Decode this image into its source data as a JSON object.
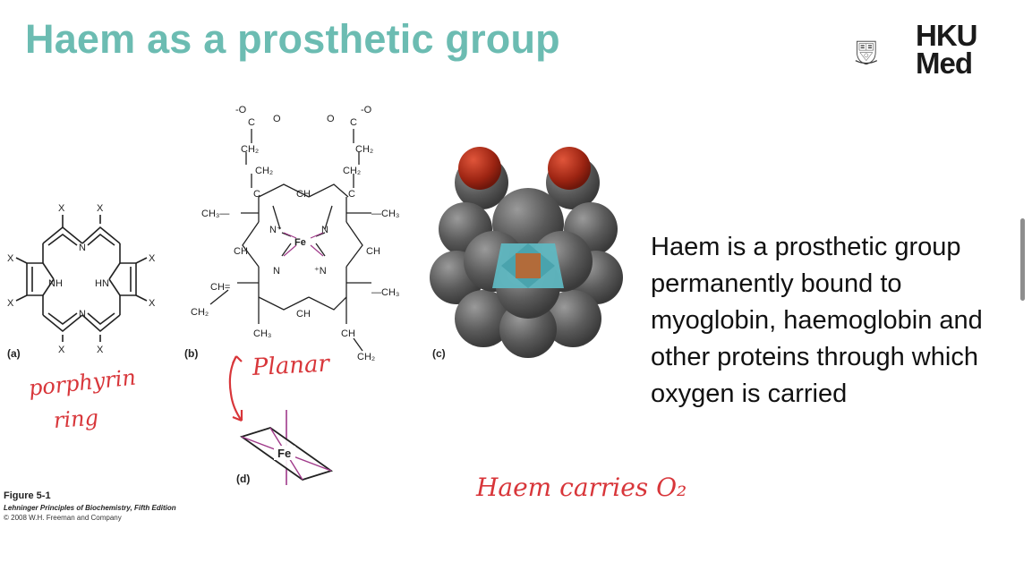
{
  "slide": {
    "title": "Haem as a prosthetic group",
    "body": "Haem is a prosthetic group permanently bound to myoglobin, haemoglobin and other proteins through which oxygen is carried"
  },
  "logo": {
    "line1": "HKU",
    "line2": "Med",
    "icon": "university-crest-icon"
  },
  "figure": {
    "panel_labels": {
      "a": "(a)",
      "b": "(b)",
      "c": "(c)",
      "d": "(d)"
    },
    "caption": {
      "title": "Figure 5-1",
      "book": "Lehninger Principles of Biochemistry, Fifth Edition",
      "copyright": "© 2008 W.H. Freeman and Company"
    },
    "porphyrin_labels": {
      "x": "X",
      "n": "N",
      "nh": "NH",
      "hn": "HN"
    },
    "haem_labels": {
      "o_minus": "-O",
      "o": "O",
      "c": "C",
      "ch2": "CH₂",
      "ch": "CH",
      "ch3": "CH₃",
      "ch3_left": "CH₃—",
      "ch3_right": "—CH₃",
      "fe": "Fe",
      "n": "N",
      "n_plus": "N⁺",
      "plus_n": "⁺N",
      "ch_eq": "CH=",
      "ch2_left": "CH₂",
      "ch_right": "CH",
      "ch2_vinyl": "CH₂"
    },
    "fe_label": "Fe"
  },
  "annotations": {
    "porphyrin_line1": "porphyrin",
    "porphyrin_line2": "ring",
    "planar": "Planar",
    "carries": "Haem carries O₂"
  },
  "colors": {
    "title": "#6cbcb2",
    "annotation": "#d8363a",
    "heme_fe": "#b26b3a",
    "heme_n": "#5fb7c1"
  }
}
